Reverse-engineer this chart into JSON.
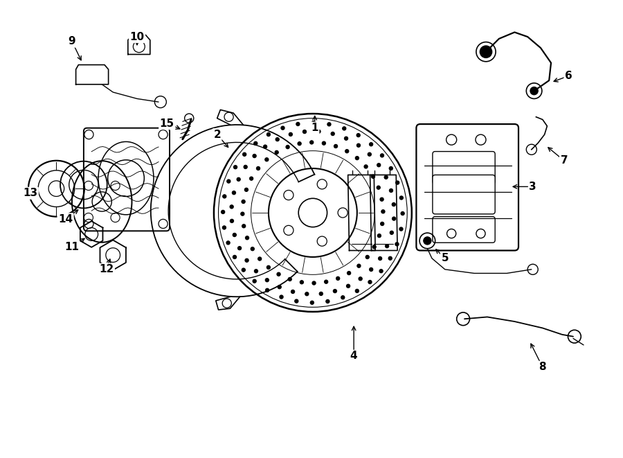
{
  "background_color": "#ffffff",
  "line_color": "#000000",
  "label_fontsize": 11,
  "label_fontweight": "bold",
  "arrows": [
    [
      "1",
      [
        4.55,
        5.05
      ],
      [
        4.55,
        5.28
      ]
    ],
    [
      "2",
      [
        3.05,
        4.95
      ],
      [
        3.25,
        4.72
      ]
    ],
    [
      "3",
      [
        7.9,
        4.15
      ],
      [
        7.55,
        4.15
      ]
    ],
    [
      "4",
      [
        5.15,
        1.55
      ],
      [
        5.15,
        2.05
      ]
    ],
    [
      "5",
      [
        6.55,
        3.05
      ],
      [
        6.38,
        3.22
      ]
    ],
    [
      "6",
      [
        8.45,
        5.85
      ],
      [
        8.18,
        5.75
      ]
    ],
    [
      "7",
      [
        8.38,
        4.55
      ],
      [
        8.1,
        4.78
      ]
    ],
    [
      "8",
      [
        8.05,
        1.38
      ],
      [
        7.85,
        1.78
      ]
    ],
    [
      "9",
      [
        0.82,
        6.38
      ],
      [
        0.98,
        6.05
      ]
    ],
    [
      "10",
      [
        1.82,
        6.45
      ],
      [
        1.82,
        6.28
      ]
    ],
    [
      "11",
      [
        0.82,
        3.22
      ],
      [
        1.05,
        3.38
      ]
    ],
    [
      "12",
      [
        1.35,
        2.88
      ],
      [
        1.42,
        3.08
      ]
    ],
    [
      "13",
      [
        0.18,
        4.05
      ],
      [
        0.32,
        4.05
      ]
    ],
    [
      "14",
      [
        0.72,
        3.65
      ],
      [
        0.95,
        3.82
      ]
    ],
    [
      "15",
      [
        2.28,
        5.12
      ],
      [
        2.52,
        5.02
      ]
    ]
  ]
}
